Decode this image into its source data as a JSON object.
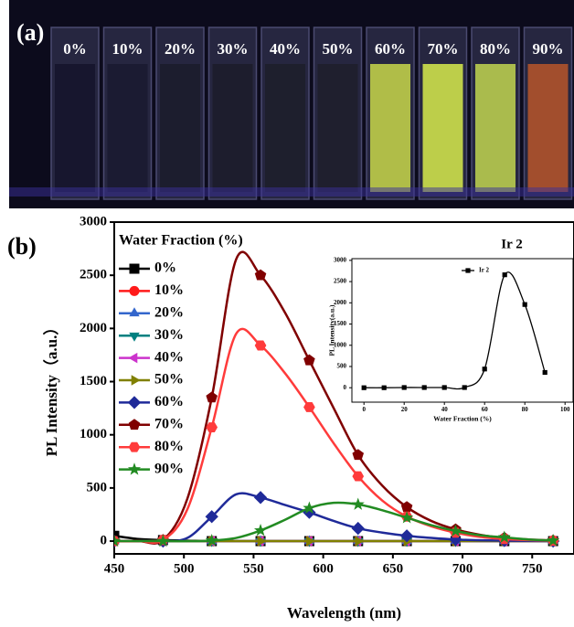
{
  "panel_a": {
    "label": "(a)",
    "vial_labels": [
      "0%",
      "10%",
      "20%",
      "30%",
      "40%",
      "50%",
      "60%",
      "70%",
      "80%",
      "90%"
    ]
  },
  "panel_b_label": "(b)",
  "chart_data": [
    {
      "type": "line",
      "xlabel": "Wavelength (nm)",
      "ylabel": "PL Intensity（a.u.）",
      "legend_title": "Water Fraction (%)",
      "x": [
        450,
        467.5,
        485,
        502.5,
        520,
        537.5,
        555,
        572.5,
        590,
        607.5,
        625,
        642.5,
        660,
        677.5,
        695,
        712.5,
        730,
        747.5,
        765
      ],
      "xlim": [
        450,
        780
      ],
      "xticks": [
        450,
        500,
        550,
        600,
        650,
        700,
        750
      ],
      "ylim": [
        -120,
        3000
      ],
      "yticks": [
        0,
        500,
        1000,
        1500,
        2000,
        2500,
        3000
      ],
      "series": [
        {
          "name": "0%",
          "color": "#000000",
          "marker": "square",
          "values": [
            50,
            20,
            10,
            5,
            0,
            0,
            0,
            0,
            0,
            0,
            0,
            0,
            0,
            0,
            0,
            0,
            0,
            0,
            0
          ]
        },
        {
          "name": "10%",
          "color": "#ff1a1a",
          "marker": "circle",
          "values": [
            0,
            0,
            0,
            0,
            0,
            0,
            0,
            0,
            0,
            0,
            0,
            0,
            0,
            0,
            0,
            0,
            0,
            0,
            0
          ]
        },
        {
          "name": "20%",
          "color": "#3366cc",
          "marker": "triangle-up",
          "values": [
            0,
            0,
            0,
            0,
            0,
            0,
            0,
            0,
            0,
            0,
            0,
            0,
            0,
            0,
            0,
            0,
            0,
            0,
            0
          ]
        },
        {
          "name": "30%",
          "color": "#008080",
          "marker": "triangle-down",
          "values": [
            0,
            0,
            0,
            0,
            0,
            0,
            0,
            0,
            0,
            0,
            0,
            0,
            0,
            0,
            0,
            0,
            0,
            0,
            0
          ]
        },
        {
          "name": "40%",
          "color": "#cc33cc",
          "marker": "triangle-left",
          "values": [
            0,
            0,
            0,
            0,
            0,
            0,
            0,
            0,
            0,
            0,
            0,
            0,
            0,
            0,
            0,
            0,
            0,
            0,
            0
          ]
        },
        {
          "name": "50%",
          "color": "#808000",
          "marker": "triangle-right",
          "values": [
            0,
            0,
            0,
            0,
            0,
            0,
            0,
            0,
            0,
            0,
            0,
            0,
            0,
            0,
            0,
            0,
            0,
            0,
            0
          ]
        },
        {
          "name": "60%",
          "color": "#1f2a99",
          "marker": "diamond",
          "values": [
            0,
            0,
            0,
            30,
            230,
            440,
            410,
            340,
            270,
            190,
            120,
            80,
            50,
            30,
            15,
            8,
            5,
            2,
            0
          ]
        },
        {
          "name": "70%",
          "color": "#800000",
          "marker": "pentagon",
          "values": [
            0,
            0,
            10,
            400,
            1350,
            2650,
            2500,
            2150,
            1700,
            1250,
            810,
            520,
            320,
            190,
            110,
            60,
            30,
            15,
            5
          ]
        },
        {
          "name": "80%",
          "color": "#ff3b3b",
          "marker": "hexagon",
          "values": [
            0,
            0,
            10,
            300,
            1070,
            1950,
            1840,
            1580,
            1260,
            920,
            610,
            380,
            230,
            140,
            80,
            40,
            20,
            10,
            3
          ]
        },
        {
          "name": "90%",
          "color": "#228b22",
          "marker": "star",
          "values": [
            0,
            0,
            0,
            0,
            5,
            30,
            100,
            200,
            310,
            360,
            345,
            290,
            220,
            150,
            95,
            55,
            35,
            15,
            5
          ]
        }
      ]
    },
    {
      "type": "line",
      "title": "Ir 2",
      "xlabel": "Water Fraction (%)",
      "ylabel": "PL Intensity(a.u.)",
      "x": [
        0,
        10,
        20,
        30,
        40,
        50,
        60,
        70,
        80,
        90
      ],
      "xlim": [
        -6,
        104
      ],
      "xticks": [
        0,
        20,
        40,
        60,
        80,
        100
      ],
      "ylim": [
        -340,
        3040
      ],
      "yticks": [
        0,
        500,
        1000,
        1500,
        2000,
        2500,
        3000
      ],
      "series": [
        {
          "name": "Ir 2",
          "color": "#000000",
          "marker": "square",
          "values": [
            0,
            0,
            5,
            5,
            5,
            5,
            440,
            2660,
            1960,
            360
          ]
        }
      ]
    }
  ]
}
